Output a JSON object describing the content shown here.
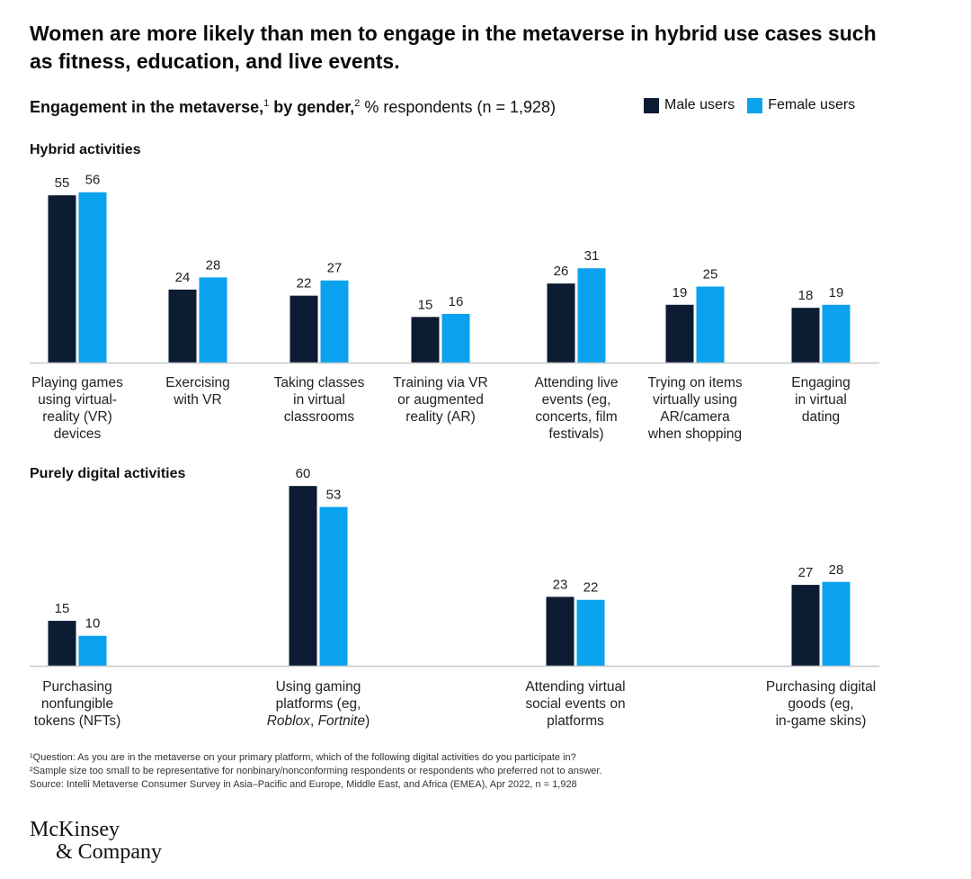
{
  "title": "Women are more likely than men to engage in the metaverse in hybrid use cases such as fitness, education, and live events.",
  "subtitle": {
    "bold_a": "Engagement in the metaverse,",
    "sup_a": "1",
    "bold_b": " by gender,",
    "sup_b": "2",
    "rest": " % respondents (n = 1,928)"
  },
  "colors": {
    "male": "#0b1c33",
    "female": "#0aa2ef",
    "axis": "#c8c8c8"
  },
  "chart_data": [
    {
      "type": "bar",
      "title": "Hybrid activities",
      "categories": [
        [
          "Playing games",
          "using virtual-",
          "reality (VR)",
          "devices"
        ],
        [
          "Exercising",
          "with VR"
        ],
        [
          "Taking classes",
          "in virtual",
          "classrooms"
        ],
        [
          "Training via VR",
          "or augmented",
          "reality (AR)"
        ],
        [
          "Attending live",
          "events (eg,",
          "concerts, film",
          "festivals)"
        ],
        [
          "Trying on items",
          "virtually using",
          "AR/camera",
          "when shopping"
        ],
        [
          "Engaging",
          "in virtual",
          "dating"
        ]
      ],
      "series": [
        {
          "name": "Male users",
          "values": [
            55,
            24,
            22,
            15,
            26,
            19,
            18
          ]
        },
        {
          "name": "Female users",
          "values": [
            56,
            28,
            27,
            16,
            31,
            25,
            19
          ]
        }
      ]
    },
    {
      "type": "bar",
      "title": "Purely digital activities",
      "categories": [
        [
          "Purchasing",
          "nonfungible",
          "tokens (NFTs)"
        ],
        [
          "Using gaming",
          "platforms (eg,",
          "Roblox, Fortnite)"
        ],
        [
          "Attending virtual",
          "social events on",
          "platforms"
        ],
        [
          "Purchasing digital",
          "goods (eg,",
          "in-game skins)"
        ]
      ],
      "series": [
        {
          "name": "Male users",
          "values": [
            15,
            60,
            23,
            27
          ]
        },
        {
          "name": "Female users",
          "values": [
            10,
            53,
            22,
            28
          ]
        }
      ]
    }
  ],
  "footnotes": [
    "¹Question: As you are in the metaverse on your primary platform, which of the following digital activities do you participate in?",
    "²Sample size too small to be representative for nonbinary/nonconforming respondents or respondents who preferred not to answer.",
    "Source: Intelli Metaverse Consumer Survey in Asia–Pacific and Europe, Middle East, and Africa (EMEA), Apr 2022, n = 1,928"
  ],
  "logo": {
    "line1": "McKinsey",
    "line2": "& Company"
  }
}
